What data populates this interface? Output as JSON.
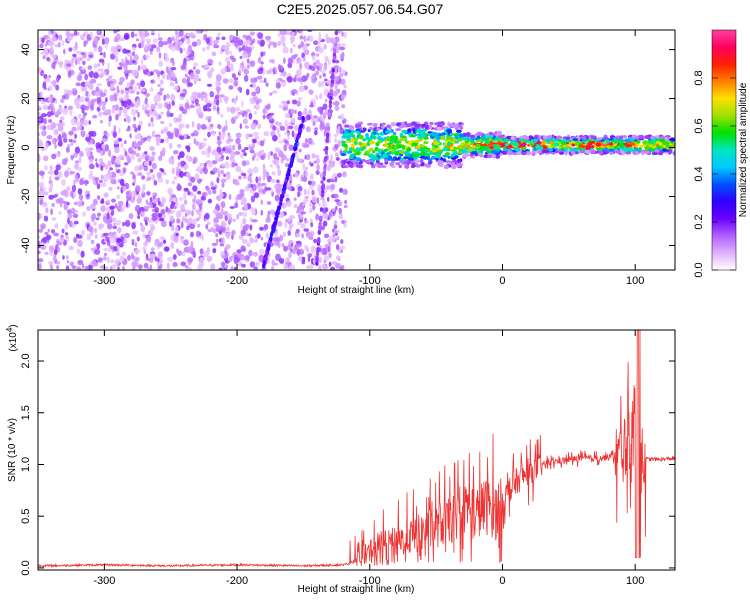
{
  "title": "C2E5.2025.057.06.54.G07",
  "chart_data": [
    {
      "type": "heatmap",
      "xlabel": "Height of straight line (km)",
      "ylabel": "Frequency (Hz)",
      "xlim": [
        -350,
        130
      ],
      "ylim": [
        -50,
        48
      ],
      "xticks": [
        -300,
        -200,
        -100,
        0,
        100
      ],
      "yticks": [
        -40,
        -20,
        0,
        20,
        40
      ],
      "colorbar": {
        "label": "Normalized spectral amplitude",
        "range": [
          0,
          1
        ],
        "ticks": [
          0.0,
          0.2,
          0.4,
          0.6,
          0.8
        ],
        "tick_labels": [
          "0.0",
          "0.2",
          "0.4",
          "0.6",
          "0.8"
        ],
        "colormap": [
          "#ffffff",
          "#e0b0ff",
          "#b060ff",
          "#6a00ff",
          "#3000ff",
          "#0050ff",
          "#00c8ff",
          "#00e8c0",
          "#00e000",
          "#a0e000",
          "#ffe000",
          "#ff8000",
          "#ff2000",
          "#ff0060",
          "#ff40a0"
        ]
      },
      "features": {
        "noise_region_x": [
          -350,
          -118
        ],
        "tone_frequency_hz": 1,
        "diagonal_trace": {
          "x": [
            -180,
            -150
          ],
          "freq": [
            -48,
            12
          ]
        },
        "secondary_trace": {
          "x": [
            -140,
            -125
          ],
          "freq": [
            -48,
            48
          ]
        }
      }
    },
    {
      "type": "line",
      "xlabel": "Height of straight line (km)",
      "ylabel": "SNR (10 * v/v)",
      "scale_label": "(x10",
      "scale_exponent": "4",
      "xlim": [
        -350,
        130
      ],
      "ylim": [
        -0.02,
        2.3
      ],
      "xticks": [
        -300,
        -200,
        -100,
        0,
        100
      ],
      "yticks": [
        0.0,
        0.5,
        1.0,
        1.5,
        2.0
      ],
      "ytick_labels": [
        "0.0",
        "0.5",
        "1.0",
        "1.5",
        "2.0"
      ],
      "series": [
        {
          "color": "#ee3333",
          "x": [
            -350,
            -300,
            -250,
            -200,
            -150,
            -120,
            -110,
            -100,
            -90,
            -80,
            -70,
            -60,
            -50,
            -40,
            -30,
            -25,
            -20,
            -15,
            -10,
            -5,
            0,
            5,
            10,
            15,
            20,
            25,
            30,
            35,
            40,
            50,
            60,
            70,
            80,
            90,
            95,
            100,
            102,
            105,
            110,
            120,
            130
          ],
          "y": [
            0.02,
            0.03,
            0.02,
            0.03,
            0.02,
            0.03,
            0.06,
            0.15,
            0.22,
            0.25,
            0.3,
            0.35,
            0.4,
            0.45,
            0.55,
            0.62,
            0.52,
            0.57,
            0.6,
            0.55,
            0.66,
            0.75,
            0.82,
            0.88,
            0.92,
            0.96,
            1.0,
            1.02,
            1.03,
            1.05,
            1.06,
            1.06,
            1.07,
            1.1,
            1.2,
            1.5,
            0.4,
            1.06,
            1.05,
            1.05,
            1.06
          ]
        }
      ]
    }
  ]
}
